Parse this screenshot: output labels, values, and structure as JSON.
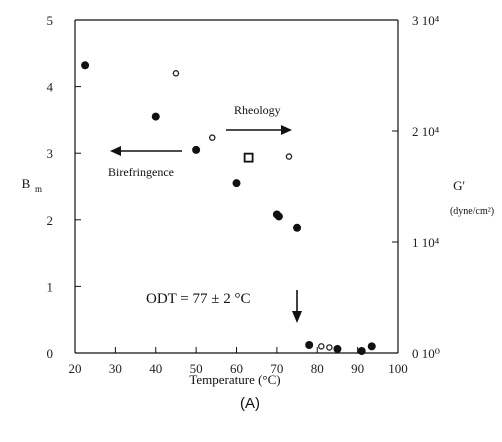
{
  "chart_data": {
    "type": "scatter",
    "x_axis": {
      "label": "Temperature (°C)",
      "range": [
        20,
        100
      ],
      "ticks": [
        "20",
        "30",
        "40",
        "50",
        "60",
        "70",
        "80",
        "90",
        "100"
      ]
    },
    "y_left": {
      "label": "B",
      "label_subscript": "m",
      "range": [
        0,
        5
      ],
      "ticks": [
        "0",
        "1",
        "2",
        "3",
        "4",
        "5"
      ]
    },
    "y_right": {
      "label": "G'",
      "unit": "(dyne/cm²)",
      "range": [
        0,
        30000
      ],
      "ticks": [
        {
          "value": 0,
          "text": "0 10⁰"
        },
        {
          "value": 10000,
          "text": "1 10⁴"
        },
        {
          "value": 20000,
          "text": "2 10⁴"
        },
        {
          "value": 30000,
          "text": "3 10⁴"
        }
      ]
    },
    "series": [
      {
        "axis": "left",
        "marker": "filled-circle",
        "points": [
          [
            22.5,
            4.32
          ],
          [
            40,
            3.55
          ],
          [
            50,
            3.05
          ],
          [
            60,
            2.55
          ],
          [
            70,
            2.08
          ],
          [
            70.5,
            2.05
          ],
          [
            75,
            1.88
          ],
          [
            78,
            0.12
          ],
          [
            85,
            0.06
          ],
          [
            91,
            0.03
          ],
          [
            93.5,
            0.1
          ]
        ]
      },
      {
        "axis": "right",
        "marker": "open-circle",
        "points": [
          [
            45,
            25200
          ],
          [
            54,
            19400
          ],
          [
            63,
            17700
          ],
          [
            73,
            17700
          ],
          [
            81,
            600
          ],
          [
            83,
            500
          ]
        ]
      },
      {
        "axis": "right",
        "marker": "open-square",
        "points": [
          [
            63,
            17600
          ]
        ]
      }
    ],
    "annotations": {
      "rheology": "Rheology",
      "birefringence": "Birefringence",
      "odt": "ODT = 77 ± 2 °C"
    },
    "caption": "(A)"
  }
}
